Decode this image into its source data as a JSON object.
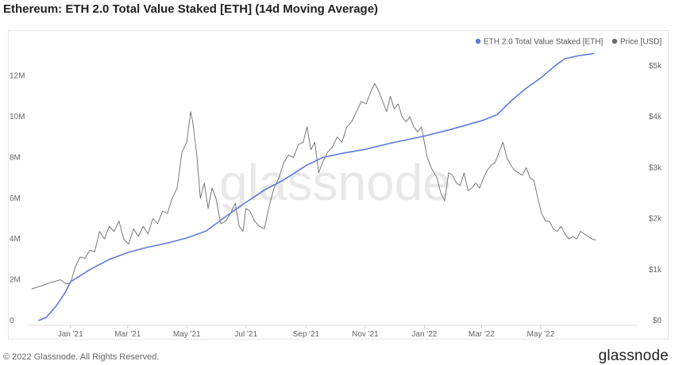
{
  "title": "Ethereum: ETH 2.0 Total Value Staked [ETH] (14d Moving Average)",
  "footer": {
    "copyright": "© 2022 Glassnode. All Rights Reserved.",
    "logo": "glassnode"
  },
  "watermark": "glassnode",
  "colors": {
    "staked": "#5b7be0",
    "price": "#6b6b6b",
    "grid": "#efefef",
    "axis": "#e0e0e0"
  },
  "chart_data": {
    "type": "line",
    "title": "Ethereum: ETH 2.0 Total Value Staked [ETH] (14d Moving Average)",
    "legend_position": "top-right",
    "grid": false,
    "x_domain": [
      -44,
      585
    ],
    "x_ticks": [
      {
        "label": "Jan '21",
        "t": 0
      },
      {
        "label": "Mar '21",
        "t": 59
      },
      {
        "label": "May '21",
        "t": 120
      },
      {
        "label": "Jul '21",
        "t": 181
      },
      {
        "label": "Sep '21",
        "t": 243
      },
      {
        "label": "Nov '21",
        "t": 304
      },
      {
        "label": "Jan '22",
        "t": 365
      },
      {
        "label": "Mar '22",
        "t": 424
      },
      {
        "label": "May '22",
        "t": 485
      }
    ],
    "y_left": {
      "label": "ETH",
      "range": [
        0,
        13000000
      ],
      "ticks": [
        "0",
        "2M",
        "4M",
        "6M",
        "8M",
        "10M",
        "12M"
      ],
      "tick_values": [
        0,
        2000000,
        4000000,
        6000000,
        8000000,
        10000000,
        12000000
      ]
    },
    "y_right": {
      "label": "USD",
      "range": [
        0,
        5200
      ],
      "ticks": [
        "$0",
        "$1k",
        "$2k",
        "$3k",
        "$4k",
        "$5k"
      ],
      "tick_values": [
        0,
        1000,
        2000,
        3000,
        4000,
        5000
      ]
    },
    "series": [
      {
        "name": "ETH 2.0 Total Value Staked [ETH]",
        "axis": "left",
        "points": [
          [
            -33,
            0
          ],
          [
            -25,
            150000
          ],
          [
            -15,
            700000
          ],
          [
            -5,
            1400000
          ],
          [
            0,
            1900000
          ],
          [
            20,
            2500000
          ],
          [
            40,
            3000000
          ],
          [
            60,
            3350000
          ],
          [
            80,
            3600000
          ],
          [
            100,
            3800000
          ],
          [
            120,
            4050000
          ],
          [
            140,
            4400000
          ],
          [
            160,
            5100000
          ],
          [
            181,
            5800000
          ],
          [
            200,
            6400000
          ],
          [
            220,
            6900000
          ],
          [
            243,
            7600000
          ],
          [
            260,
            8000000
          ],
          [
            280,
            8200000
          ],
          [
            304,
            8400000
          ],
          [
            330,
            8700000
          ],
          [
            365,
            9050000
          ],
          [
            390,
            9350000
          ],
          [
            424,
            9800000
          ],
          [
            440,
            10100000
          ],
          [
            455,
            10800000
          ],
          [
            470,
            11400000
          ],
          [
            485,
            11900000
          ],
          [
            500,
            12500000
          ],
          [
            510,
            12850000
          ],
          [
            525,
            13000000
          ],
          [
            540,
            13100000
          ]
        ]
      },
      {
        "name": "Price [USD]",
        "axis": "right",
        "points": [
          [
            -40,
            620
          ],
          [
            -30,
            680
          ],
          [
            -20,
            750
          ],
          [
            -10,
            800
          ],
          [
            -5,
            720
          ],
          [
            0,
            730
          ],
          [
            5,
            1050
          ],
          [
            10,
            1250
          ],
          [
            15,
            1220
          ],
          [
            20,
            1380
          ],
          [
            25,
            1350
          ],
          [
            30,
            1750
          ],
          [
            35,
            1600
          ],
          [
            40,
            1850
          ],
          [
            45,
            1750
          ],
          [
            50,
            1950
          ],
          [
            55,
            1600
          ],
          [
            60,
            1500
          ],
          [
            65,
            1800
          ],
          [
            70,
            1650
          ],
          [
            75,
            1850
          ],
          [
            80,
            1700
          ],
          [
            85,
            2000
          ],
          [
            90,
            1900
          ],
          [
            95,
            2150
          ],
          [
            100,
            2100
          ],
          [
            105,
            2400
          ],
          [
            110,
            2600
          ],
          [
            115,
            3300
          ],
          [
            120,
            3500
          ],
          [
            124,
            4100
          ],
          [
            126,
            3900
          ],
          [
            130,
            3300
          ],
          [
            134,
            2400
          ],
          [
            138,
            2700
          ],
          [
            142,
            2200
          ],
          [
            146,
            2600
          ],
          [
            150,
            2400
          ],
          [
            155,
            1900
          ],
          [
            160,
            1950
          ],
          [
            165,
            2100
          ],
          [
            170,
            2300
          ],
          [
            174,
            1850
          ],
          [
            178,
            1750
          ],
          [
            181,
            2200
          ],
          [
            185,
            2150
          ],
          [
            190,
            1950
          ],
          [
            195,
            1850
          ],
          [
            200,
            1800
          ],
          [
            205,
            2250
          ],
          [
            210,
            2600
          ],
          [
            215,
            2800
          ],
          [
            220,
            3100
          ],
          [
            225,
            3250
          ],
          [
            230,
            3200
          ],
          [
            235,
            3450
          ],
          [
            240,
            3500
          ],
          [
            244,
            3800
          ],
          [
            248,
            3350
          ],
          [
            252,
            3500
          ],
          [
            256,
            2900
          ],
          [
            260,
            3100
          ],
          [
            265,
            3300
          ],
          [
            270,
            3400
          ],
          [
            275,
            3600
          ],
          [
            280,
            3500
          ],
          [
            285,
            3800
          ],
          [
            290,
            3900
          ],
          [
            295,
            4100
          ],
          [
            300,
            4300
          ],
          [
            305,
            4250
          ],
          [
            310,
            4500
          ],
          [
            314,
            4650
          ],
          [
            318,
            4500
          ],
          [
            322,
            4300
          ],
          [
            326,
            4100
          ],
          [
            330,
            4400
          ],
          [
            334,
            4150
          ],
          [
            338,
            4250
          ],
          [
            342,
            4000
          ],
          [
            346,
            3900
          ],
          [
            350,
            4000
          ],
          [
            354,
            3800
          ],
          [
            358,
            3700
          ],
          [
            362,
            3800
          ],
          [
            368,
            3200
          ],
          [
            372,
            3000
          ],
          [
            378,
            2800
          ],
          [
            382,
            2500
          ],
          [
            386,
            2350
          ],
          [
            390,
            2900
          ],
          [
            394,
            2850
          ],
          [
            398,
            2700
          ],
          [
            402,
            2650
          ],
          [
            406,
            2900
          ],
          [
            410,
            2550
          ],
          [
            414,
            2600
          ],
          [
            418,
            2700
          ],
          [
            422,
            2600
          ],
          [
            426,
            2800
          ],
          [
            430,
            2950
          ],
          [
            434,
            3050
          ],
          [
            438,
            3100
          ],
          [
            442,
            3300
          ],
          [
            446,
            3500
          ],
          [
            450,
            3200
          ],
          [
            454,
            3050
          ],
          [
            458,
            2950
          ],
          [
            462,
            2900
          ],
          [
            466,
            2850
          ],
          [
            470,
            3000
          ],
          [
            474,
            2800
          ],
          [
            478,
            2750
          ],
          [
            482,
            2400
          ],
          [
            486,
            2100
          ],
          [
            490,
            1950
          ],
          [
            494,
            1950
          ],
          [
            498,
            1800
          ],
          [
            502,
            1750
          ],
          [
            506,
            1850
          ],
          [
            510,
            1700
          ],
          [
            514,
            1600
          ],
          [
            518,
            1650
          ],
          [
            522,
            1600
          ],
          [
            526,
            1750
          ],
          [
            530,
            1700
          ],
          [
            534,
            1650
          ],
          [
            538,
            1600
          ],
          [
            542,
            1580
          ]
        ]
      }
    ]
  }
}
